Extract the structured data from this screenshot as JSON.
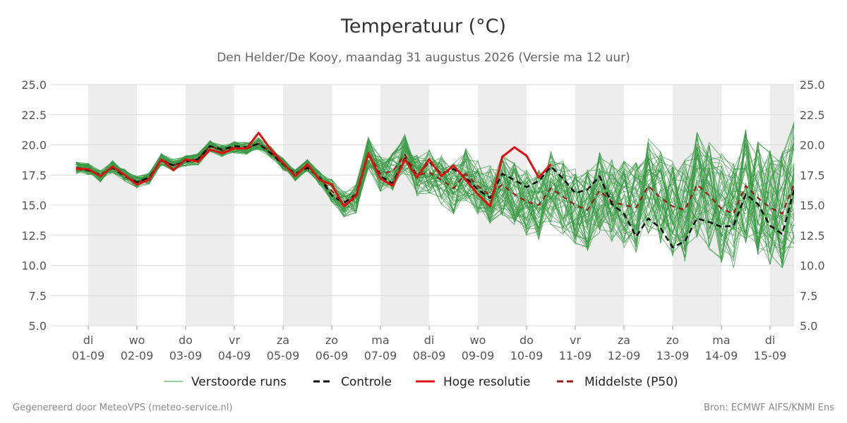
{
  "header": {
    "title": "Temperatuur (°C)",
    "subtitle": "Den Helder/De Kooy, maandag 31 augustus 2026 (Versie ma 12 uur)"
  },
  "footer": {
    "left": "Gegenereerd door MeteoVPS (meteo-service.nl)",
    "right": "Bron: ECMWF AIFS/KNMI Ens"
  },
  "chart_data": {
    "type": "line",
    "title": "Temperatuur (°C)",
    "subtitle": "Den Helder/De Kooy, maandag 31 augustus 2026 (Versie ma 12 uur)",
    "ylim": [
      5.0,
      25.0
    ],
    "yticks": [
      "5.0",
      "7.5",
      "10.0",
      "12.5",
      "15.0",
      "17.5",
      "20.0",
      "22.5",
      "25.0"
    ],
    "xlim": [
      -0.25,
      14.5
    ],
    "day_labels": [
      {
        "day": "di",
        "date": "01-09"
      },
      {
        "day": "wo",
        "date": "02-09"
      },
      {
        "day": "do",
        "date": "03-09"
      },
      {
        "day": "vr",
        "date": "04-09"
      },
      {
        "day": "za",
        "date": "05-09"
      },
      {
        "day": "zo",
        "date": "06-09"
      },
      {
        "day": "ma",
        "date": "07-09"
      },
      {
        "day": "di",
        "date": "08-09"
      },
      {
        "day": "wo",
        "date": "09-09"
      },
      {
        "day": "do",
        "date": "10-09"
      },
      {
        "day": "vr",
        "date": "11-09"
      },
      {
        "day": "za",
        "date": "12-09"
      },
      {
        "day": "zo",
        "date": "13-09"
      },
      {
        "day": "ma",
        "date": "14-09"
      },
      {
        "day": "di",
        "date": "15-09"
      }
    ],
    "shaded_days": [
      0,
      2,
      4,
      6,
      8,
      10,
      12,
      14
    ],
    "grid": true,
    "legend_position": "bottom",
    "legend": [
      {
        "label": "Verstoorde runs",
        "color": "#3a9a44",
        "style": "thin"
      },
      {
        "label": "Controle",
        "color": "#111111",
        "style": "dashed"
      },
      {
        "label": "Hoge resolutie",
        "color": "#dd1111",
        "style": "solid"
      },
      {
        "label": "Middelste (P50)",
        "color": "#9b1a1a",
        "style": "dashed"
      }
    ],
    "colors": {
      "ensemble": "#3a9a44",
      "control": "#111111",
      "hires": "#dd1111",
      "p50": "#9b1a1a",
      "shade": "#ededed",
      "grid": "#d9d9d9"
    },
    "series": [
      {
        "name": "Hoge resolutie",
        "x": [
          -0.25,
          0,
          0.25,
          0.5,
          0.75,
          1,
          1.25,
          1.5,
          1.75,
          2,
          2.25,
          2.5,
          2.75,
          3,
          3.25,
          3.5,
          3.75,
          4,
          4.25,
          4.5,
          4.75,
          5,
          5.25,
          5.5,
          5.75,
          6,
          6.25,
          6.5,
          6.75,
          7,
          7.25,
          7.5,
          7.75,
          8,
          8.25,
          8.5,
          8.75,
          9,
          9.25,
          9.5
        ],
        "y": [
          18.0,
          18.0,
          17.4,
          18.2,
          17.5,
          16.7,
          17.1,
          18.8,
          17.9,
          18.8,
          18.6,
          19.6,
          19.3,
          19.7,
          19.7,
          21.0,
          19.6,
          18.5,
          17.4,
          18.4,
          17.1,
          16.7,
          14.9,
          15.8,
          19.3,
          17.2,
          16.6,
          18.8,
          17.3,
          18.8,
          17.4,
          18.3,
          17.1,
          15.9,
          14.9,
          19.0,
          19.8,
          19.1,
          17.3,
          18.4
        ]
      },
      {
        "name": "Controle",
        "x": [
          -0.25,
          0,
          0.25,
          0.5,
          0.75,
          1,
          1.25,
          1.5,
          1.75,
          2,
          2.25,
          2.5,
          2.75,
          3,
          3.25,
          3.5,
          3.75,
          4,
          4.25,
          4.5,
          4.75,
          5,
          5.25,
          5.5,
          5.75,
          6,
          6.25,
          6.5,
          6.75,
          7,
          7.25,
          7.5,
          7.75,
          8,
          8.25,
          8.5,
          8.75,
          9,
          9.25,
          9.5,
          9.75,
          10,
          10.25,
          10.5,
          10.75,
          11,
          11.25,
          11.5,
          11.75,
          12,
          12.25,
          12.5,
          12.75,
          13,
          13.25,
          13.5,
          13.75,
          14,
          14.25,
          14.5
        ],
        "y": [
          18.0,
          17.9,
          17.5,
          18.1,
          17.4,
          16.9,
          17.3,
          18.7,
          18.3,
          18.6,
          18.8,
          19.9,
          19.6,
          19.9,
          19.8,
          20.1,
          19.3,
          18.4,
          17.6,
          18.1,
          17.3,
          15.8,
          15.2,
          15.9,
          19.2,
          17.4,
          16.8,
          18.9,
          17.4,
          18.6,
          17.6,
          18.0,
          17.3,
          16.3,
          15.6,
          17.6,
          17.1,
          16.5,
          17.0,
          18.2,
          17.2,
          16.0,
          16.3,
          17.4,
          15.1,
          14.3,
          12.4,
          13.9,
          13.1,
          11.5,
          12.0,
          13.9,
          13.6,
          13.2,
          13.3,
          15.9,
          15.1,
          13.3,
          12.6,
          16.4
        ]
      },
      {
        "name": "Middelste (P50)",
        "x": [
          -0.25,
          0,
          0.25,
          0.5,
          0.75,
          1,
          1.25,
          1.5,
          1.75,
          2,
          2.25,
          2.5,
          2.75,
          3,
          3.25,
          3.5,
          3.75,
          4,
          4.25,
          4.5,
          4.75,
          5,
          5.25,
          5.5,
          5.75,
          6,
          6.25,
          6.5,
          6.75,
          7,
          7.25,
          7.5,
          7.75,
          8,
          8.25,
          8.5,
          8.75,
          9,
          9.25,
          9.5,
          9.75,
          10,
          10.25,
          10.5,
          10.75,
          11,
          11.25,
          11.5,
          11.75,
          12,
          12.25,
          12.5,
          12.75,
          13,
          13.25,
          13.5,
          13.75,
          14,
          14.25,
          14.5
        ],
        "y": [
          18.1,
          18.0,
          17.4,
          18.2,
          17.5,
          16.9,
          17.2,
          18.8,
          18.3,
          18.7,
          18.8,
          19.9,
          19.5,
          19.8,
          19.7,
          20.1,
          19.4,
          18.4,
          17.5,
          18.3,
          17.2,
          16.2,
          15.0,
          15.6,
          19.3,
          17.6,
          17.8,
          19.2,
          17.5,
          17.7,
          17.1,
          16.4,
          17.6,
          16.6,
          15.8,
          16.7,
          15.9,
          15.3,
          15.0,
          16.4,
          15.7,
          15.0,
          14.6,
          16.2,
          15.3,
          15.0,
          14.8,
          16.6,
          15.6,
          14.9,
          14.6,
          16.7,
          15.8,
          14.7,
          14.3,
          16.6,
          15.6,
          14.8,
          14.3,
          16.8
        ]
      }
    ]
  }
}
